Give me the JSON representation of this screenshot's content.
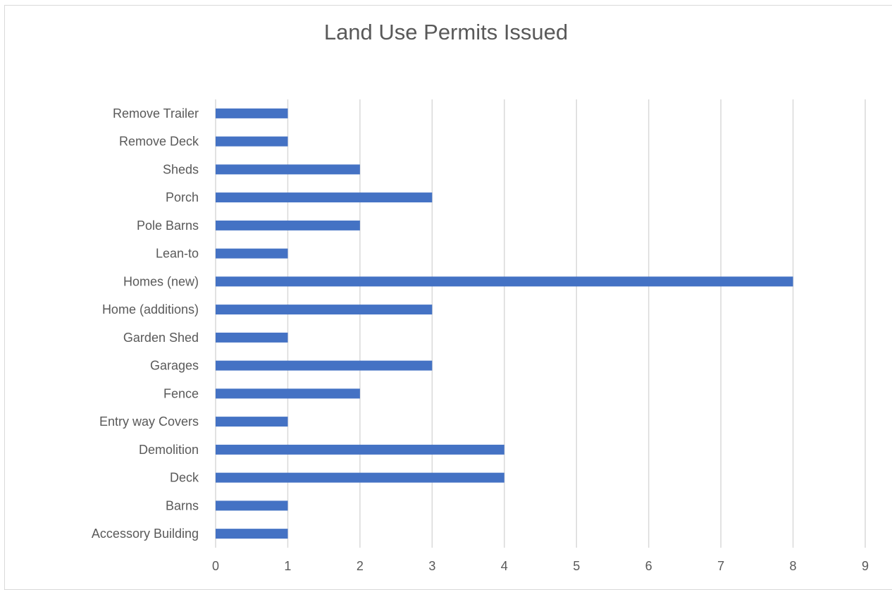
{
  "chart_data": {
    "type": "bar",
    "orientation": "horizontal",
    "title": "Land Use Permits Issued",
    "xlabel": "",
    "ylabel": "",
    "categories": [
      "Accessory Building",
      "Barns",
      "Deck",
      "Demolition",
      "Entry way Covers",
      "Fence",
      "Garages",
      "Garden Shed",
      "Home (additions)",
      "Homes (new)",
      "Lean-to",
      "Pole Barns",
      "Porch",
      "Sheds",
      "Remove Deck",
      "Remove Trailer"
    ],
    "values": [
      1,
      1,
      4,
      4,
      1,
      2,
      3,
      1,
      3,
      8,
      1,
      2,
      3,
      2,
      1,
      1
    ],
    "xlim": [
      0,
      9
    ],
    "xticks": [
      "0",
      "1",
      "2",
      "3",
      "4",
      "5",
      "6",
      "7",
      "8",
      "9"
    ],
    "grid": "vertical",
    "legend": "none",
    "bar_color": "#4472c4",
    "grid_color": "#d9d9d9"
  }
}
